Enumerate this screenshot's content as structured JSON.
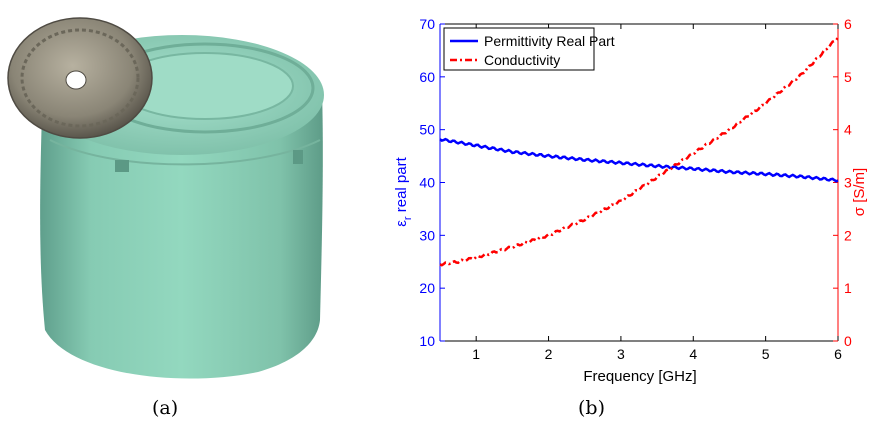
{
  "captions": {
    "a": "(a)",
    "b": "(b)"
  },
  "photo": {
    "subject": "phantom-cylinder-with-coin",
    "colors": {
      "phantom": "#8fd6bd",
      "phantom_shadow": "#5fa893",
      "coin": "#8a8576"
    }
  },
  "chart_data": {
    "type": "line",
    "xlabel": "Frequency [GHz]",
    "ylabel_left": "εr real part",
    "ylabel_left_main": "ε",
    "ylabel_left_sub": "r",
    "ylabel_left_rest": " real part",
    "ylabel_right": "σ [S/m]",
    "xlim": [
      0.5,
      6
    ],
    "ylim_left": [
      10,
      70
    ],
    "ylim_right": [
      0,
      6
    ],
    "xticks": [
      "1",
      "2",
      "3",
      "4",
      "5",
      "6"
    ],
    "yticks_left": [
      "10",
      "20",
      "30",
      "40",
      "50",
      "60",
      "70"
    ],
    "yticks_right": [
      "0",
      "1",
      "2",
      "3",
      "4",
      "5",
      "6"
    ],
    "legend_position": "top-left",
    "grid": false,
    "colors": {
      "left": "#0000ff",
      "right": "#ff0000",
      "axis": "#000000"
    },
    "series": [
      {
        "name": "Permittivity Real Part",
        "axis": "left",
        "style": "solid",
        "x": [
          0.5,
          0.75,
          1.0,
          1.25,
          1.5,
          1.75,
          2.0,
          2.5,
          3.0,
          3.5,
          4.0,
          4.5,
          5.0,
          5.5,
          6.0
        ],
        "values": [
          48.2,
          47.6,
          47.0,
          46.4,
          45.8,
          45.4,
          45.0,
          44.3,
          43.7,
          43.1,
          42.6,
          42.0,
          41.6,
          41.1,
          40.4
        ]
      },
      {
        "name": "Conductivity",
        "axis": "right",
        "style": "dash-dot",
        "x": [
          0.5,
          0.75,
          1.0,
          1.5,
          2.0,
          2.5,
          3.0,
          3.5,
          4.0,
          4.5,
          5.0,
          5.5,
          6.0
        ],
        "values": [
          1.45,
          1.5,
          1.58,
          1.78,
          2.0,
          2.3,
          2.65,
          3.1,
          3.55,
          4.0,
          4.5,
          5.05,
          5.75
        ]
      }
    ]
  }
}
